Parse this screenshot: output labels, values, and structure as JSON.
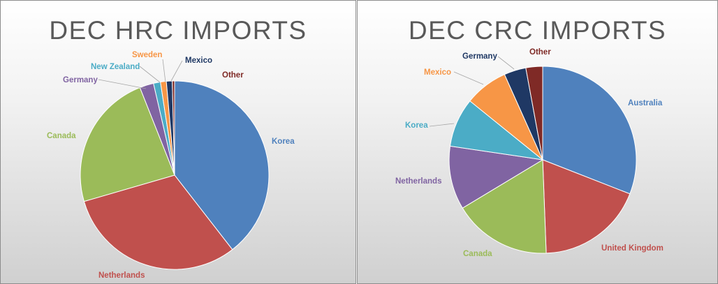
{
  "chart_data": [
    {
      "type": "pie",
      "title": "DEC HRC IMPORTS",
      "slices": [
        {
          "label": "Korea",
          "value": 39.5,
          "color": "#4f81bd"
        },
        {
          "label": "Netherlands",
          "value": 31.0,
          "color": "#c0504d"
        },
        {
          "label": "Canada",
          "value": 23.5,
          "color": "#9bbb59"
        },
        {
          "label": "Germany",
          "value": 2.4,
          "color": "#8064a2"
        },
        {
          "label": "New Zealand",
          "value": 1.2,
          "color": "#4bacc6"
        },
        {
          "label": "Sweden",
          "value": 1.0,
          "color": "#f79646"
        },
        {
          "label": "Mexico",
          "value": 1.0,
          "color": "#1f3864"
        },
        {
          "label": "Other",
          "value": 0.4,
          "color": "#7f2a26"
        }
      ]
    },
    {
      "type": "pie",
      "title": "DEC CRC IMPORTS",
      "slices": [
        {
          "label": "Australia",
          "value": 31.0,
          "color": "#4f81bd"
        },
        {
          "label": "United Kingdom",
          "value": 18.5,
          "color": "#c0504d"
        },
        {
          "label": "Canada",
          "value": 17.0,
          "color": "#9bbb59"
        },
        {
          "label": "Netherlands",
          "value": 11.0,
          "color": "#8064a2"
        },
        {
          "label": "Korea",
          "value": 8.5,
          "color": "#4bacc6"
        },
        {
          "label": "Mexico",
          "value": 7.5,
          "color": "#f79646"
        },
        {
          "label": "Germany",
          "value": 3.8,
          "color": "#1f3864"
        },
        {
          "label": "Other",
          "value": 2.9,
          "color": "#7f2a26"
        }
      ]
    }
  ]
}
